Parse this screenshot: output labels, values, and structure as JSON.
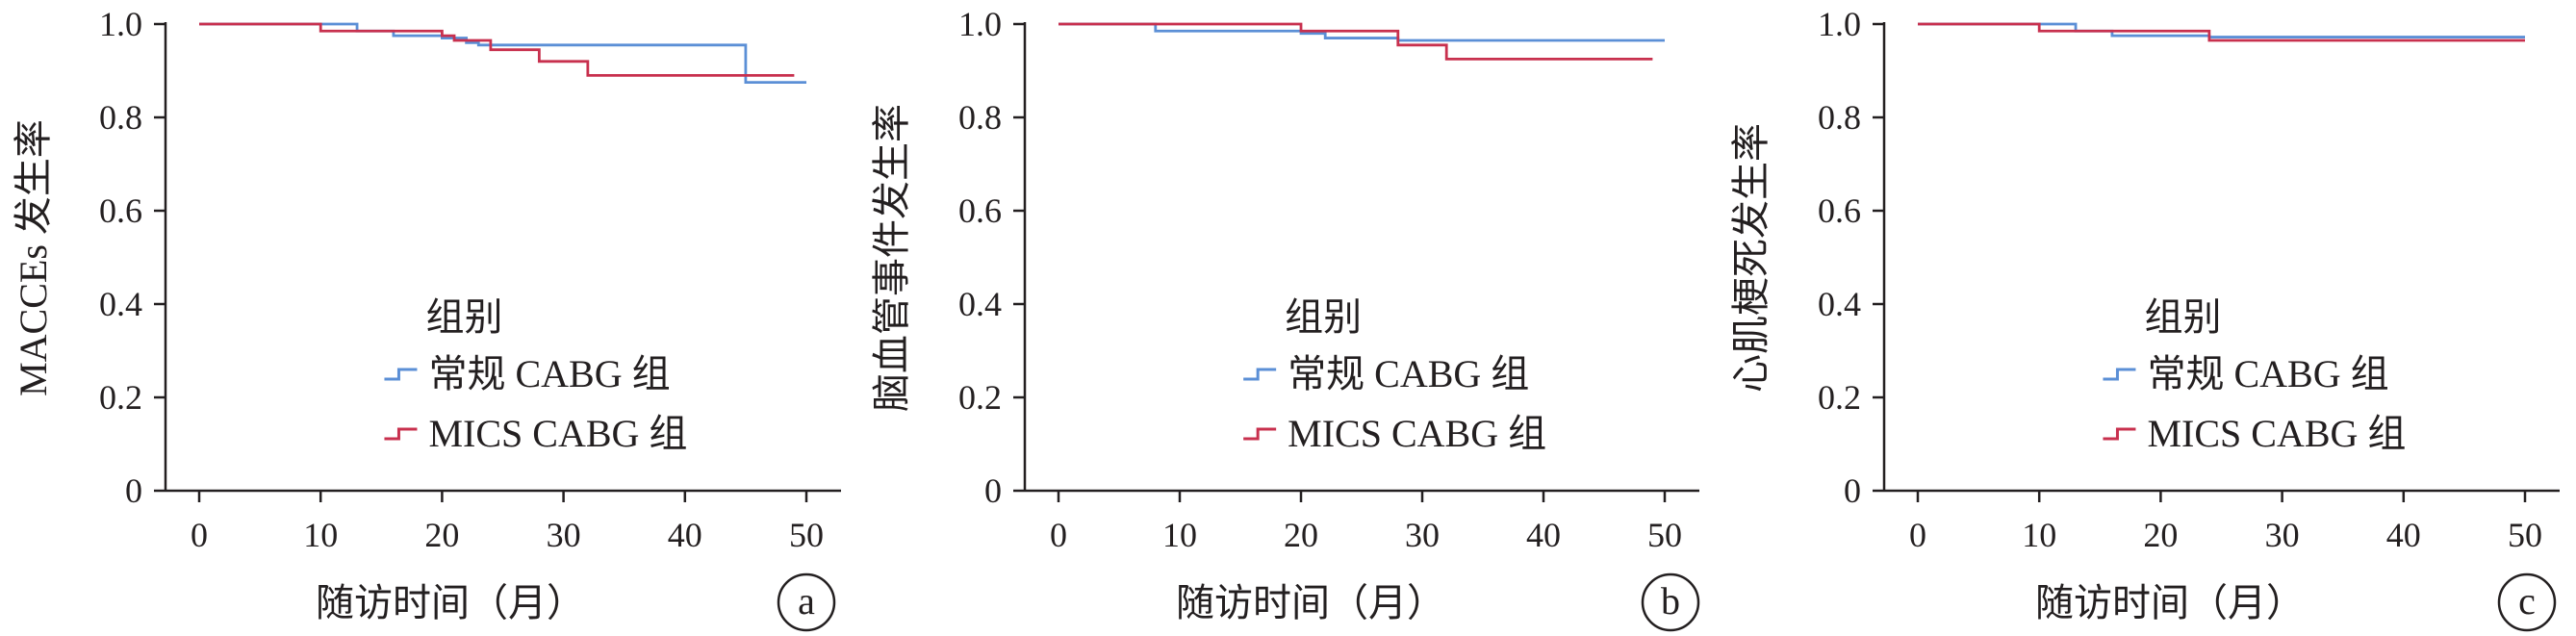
{
  "colors": {
    "conventional": "#5b8fd6",
    "mics": "#c8304e",
    "axis": "#231f20"
  },
  "chart_data": [
    {
      "type": "line",
      "panel_label": "a",
      "ylabel": "MACCEs 发生率",
      "xlabel": "随访时间（月）",
      "xlim": [
        0,
        50
      ],
      "ylim": [
        0,
        1.0
      ],
      "xticks": [
        "0",
        "10",
        "20",
        "30",
        "40",
        "50"
      ],
      "yticks": [
        "0",
        "0.2",
        "0.4",
        "0.6",
        "0.8",
        "1.0"
      ],
      "grid": false,
      "legend": {
        "title": "组别",
        "position": "bottom-right",
        "entries": [
          "常规 CABG 组",
          "MICS CABG 组"
        ]
      },
      "series": [
        {
          "name": "常规 CABG 组",
          "color_key": "conventional",
          "x": [
            0,
            13,
            16,
            20,
            22,
            23,
            45,
            50
          ],
          "y": [
            1.0,
            0.985,
            0.975,
            0.97,
            0.96,
            0.955,
            0.875,
            0.875
          ]
        },
        {
          "name": "MICS CABG 组",
          "color_key": "mics",
          "x": [
            0,
            10,
            15,
            20,
            21,
            24,
            28,
            32,
            49
          ],
          "y": [
            1.0,
            0.985,
            0.985,
            0.975,
            0.965,
            0.945,
            0.92,
            0.89,
            0.89
          ]
        }
      ]
    },
    {
      "type": "line",
      "panel_label": "b",
      "ylabel": "脑血管事件发生率",
      "xlabel": "随访时间（月）",
      "xlim": [
        0,
        50
      ],
      "ylim": [
        0,
        1.0
      ],
      "xticks": [
        "0",
        "10",
        "20",
        "30",
        "40",
        "50"
      ],
      "yticks": [
        "0",
        "0.2",
        "0.4",
        "0.6",
        "0.8",
        "1.0"
      ],
      "grid": false,
      "legend": {
        "title": "组别",
        "position": "bottom-right",
        "entries": [
          "常规 CABG 组",
          "MICS CABG 组"
        ]
      },
      "series": [
        {
          "name": "常规 CABG 组",
          "color_key": "conventional",
          "x": [
            0,
            8,
            20,
            22,
            28,
            50
          ],
          "y": [
            1.0,
            0.985,
            0.98,
            0.97,
            0.965,
            0.965
          ]
        },
        {
          "name": "MICS CABG 组",
          "color_key": "mics",
          "x": [
            0,
            20,
            28,
            32,
            49
          ],
          "y": [
            1.0,
            0.985,
            0.955,
            0.925,
            0.925
          ]
        }
      ]
    },
    {
      "type": "line",
      "panel_label": "c",
      "ylabel": "心肌梗死发生率",
      "xlabel": "随访时间（月）",
      "xlim": [
        0,
        50
      ],
      "ylim": [
        0,
        1.0
      ],
      "xticks": [
        "0",
        "10",
        "20",
        "30",
        "40",
        "50"
      ],
      "yticks": [
        "0",
        "0.2",
        "0.4",
        "0.6",
        "0.8",
        "1.0"
      ],
      "grid": false,
      "legend": {
        "title": "组别",
        "position": "bottom-right",
        "entries": [
          "常规 CABG 组",
          "MICS CABG 组"
        ]
      },
      "series": [
        {
          "name": "常规 CABG 组",
          "color_key": "conventional",
          "x": [
            0,
            13,
            16,
            24,
            50
          ],
          "y": [
            1.0,
            0.985,
            0.975,
            0.972,
            0.972
          ]
        },
        {
          "name": "MICS CABG 组",
          "color_key": "mics",
          "x": [
            0,
            10,
            24,
            50
          ],
          "y": [
            1.0,
            0.985,
            0.965,
            0.965
          ]
        }
      ]
    }
  ]
}
